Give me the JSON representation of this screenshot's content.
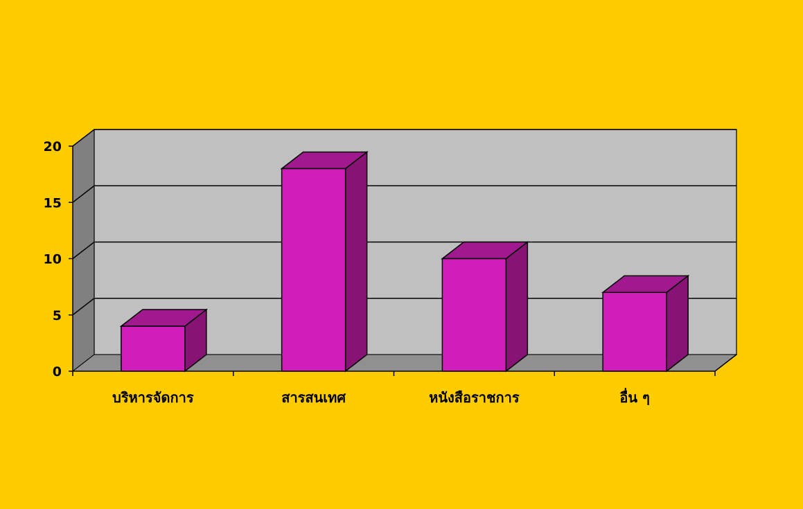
{
  "chart_data": {
    "type": "bar",
    "style": "3d-column",
    "categories": [
      "บริหารจัดการ",
      "สารสนเทศ",
      "หนังสือราชการ",
      "อื่น ๆ"
    ],
    "values": [
      4,
      18,
      10,
      7
    ],
    "ylim": [
      0,
      20
    ],
    "yticks": [
      0,
      5,
      10,
      15,
      20
    ],
    "grid": true,
    "legend": "none",
    "colors": {
      "background": "#FFCC00",
      "wall": "#C0C0C0",
      "side_wall": "#808080",
      "floor": "#909090",
      "bar_front": "#D01CB8",
      "bar_top": "#A0198E",
      "bar_side": "#871475",
      "gridline": "#000000"
    }
  }
}
